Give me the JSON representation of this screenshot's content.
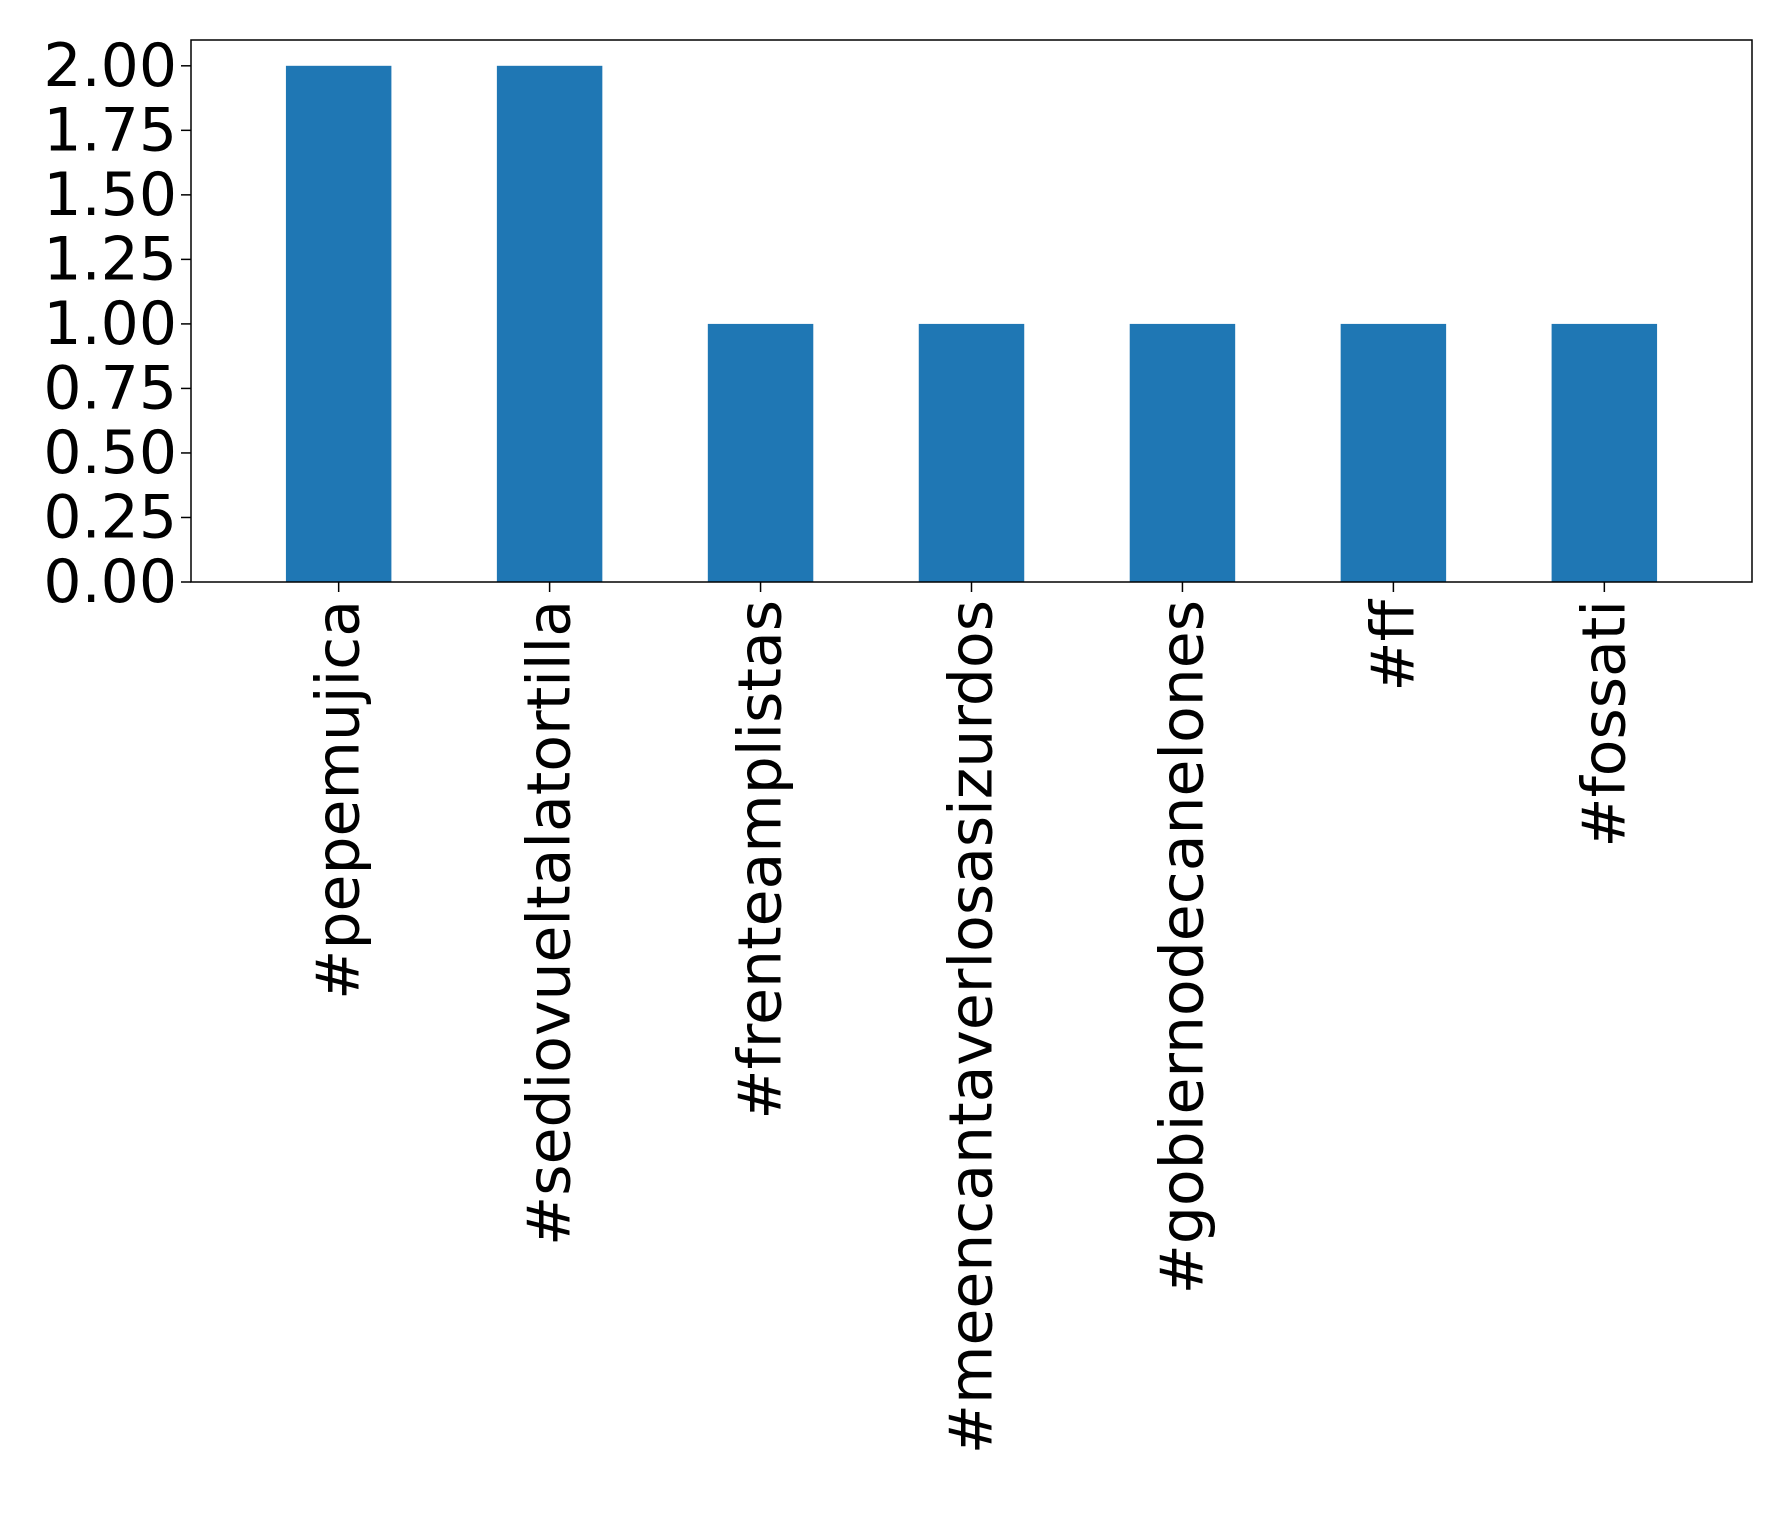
{
  "chart_data": {
    "type": "bar",
    "title": "",
    "xlabel": "",
    "ylabel": "",
    "categories": [
      "#pepemujica",
      "#sediovueltalatortilla",
      "#frenteamplistas",
      "#meencantaverlosasizurdos",
      "#gobiernodecanelones",
      "#ff",
      "#fossati"
    ],
    "values": [
      2,
      2,
      1,
      1,
      1,
      1,
      1
    ],
    "ylim": [
      0,
      2.1
    ],
    "yticks": [
      "0.00",
      "0.25",
      "0.50",
      "0.75",
      "1.00",
      "1.25",
      "1.50",
      "1.75",
      "2.00"
    ],
    "ytick_values": [
      0,
      0.25,
      0.5,
      0.75,
      1.0,
      1.25,
      1.5,
      1.75,
      2.0
    ],
    "grid": false,
    "legend": "none",
    "bar_color": "#1f77b4"
  }
}
